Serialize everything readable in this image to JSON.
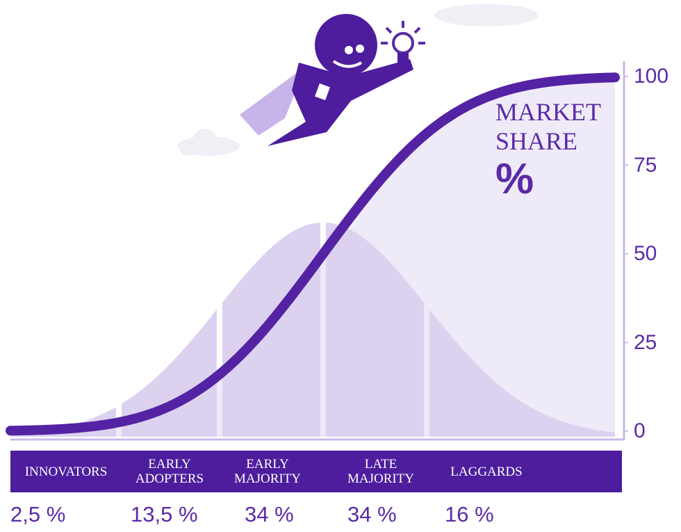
{
  "chart_data": {
    "type": "bell",
    "y_label": "MARKET SHARE",
    "y_unit": "%",
    "categories": [
      "INNOVATORS",
      "EARLY ADOPTERS",
      "EARLY MAJORITY",
      "LATE MAJORITY",
      "LAGGARDS"
    ],
    "values": [
      2.5,
      13.5,
      34,
      34,
      16
    ],
    "value_labels": [
      "2,5 %",
      "13,5 %",
      "34 %",
      "34 %",
      "16 %"
    ],
    "ylim": [
      0,
      100
    ],
    "yticks": [
      0,
      25,
      50,
      75,
      100
    ],
    "color": "#dcd2f0"
  }
}
